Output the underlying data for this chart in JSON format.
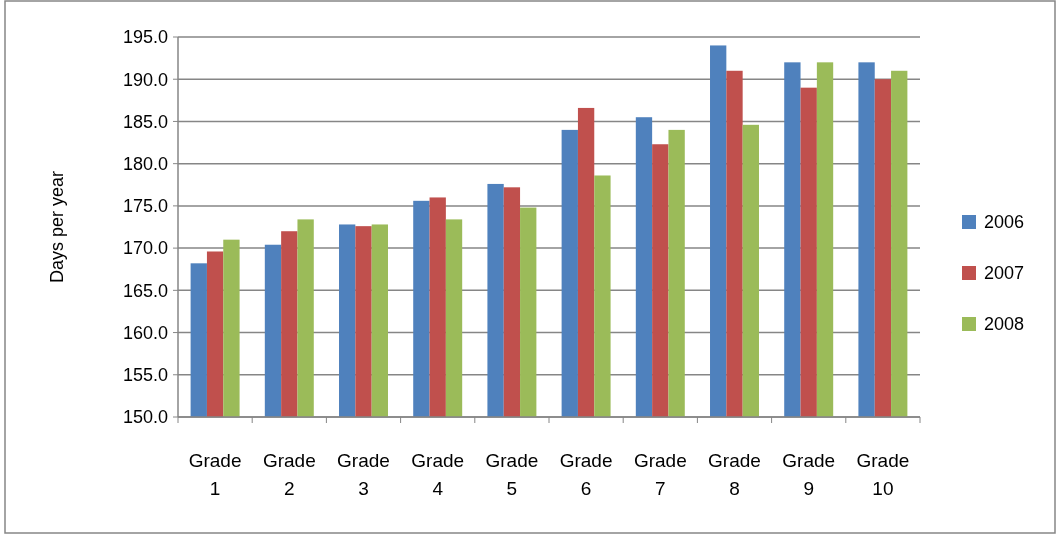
{
  "chart_data": {
    "type": "bar",
    "ylabel": "Days per year",
    "categories": [
      "Grade 1",
      "Grade 2",
      "Grade 3",
      "Grade 4",
      "Grade 5",
      "Grade 6",
      "Grade 7",
      "Grade 8",
      "Grade 9",
      "Grade 10"
    ],
    "series": [
      {
        "name": "2006",
        "color": "#4f81bd",
        "values": [
          168.2,
          170.4,
          172.8,
          175.6,
          177.6,
          184.0,
          185.5,
          194.0,
          192.0,
          192.0
        ]
      },
      {
        "name": "2007",
        "color": "#c0504d",
        "values": [
          169.6,
          172.0,
          172.6,
          176.0,
          177.2,
          186.6,
          182.3,
          191.0,
          189.0,
          190.0
        ]
      },
      {
        "name": "2008",
        "color": "#9bbb59",
        "values": [
          171.0,
          173.4,
          172.8,
          173.4,
          174.8,
          178.6,
          184.0,
          184.6,
          192.0,
          191.0
        ]
      }
    ],
    "ylim": [
      150,
      195
    ],
    "yticks": [
      {
        "value": 150,
        "label": "150.0"
      },
      {
        "value": 155,
        "label": "155.0"
      },
      {
        "value": 160,
        "label": "160.0"
      },
      {
        "value": 165,
        "label": "165.0"
      },
      {
        "value": 170,
        "label": "170.0"
      },
      {
        "value": 175,
        "label": "175.0"
      },
      {
        "value": 180,
        "label": "180.0"
      },
      {
        "value": 185,
        "label": "185.0"
      },
      {
        "value": 190,
        "label": "190.0"
      },
      {
        "value": 195,
        "label": "195.0"
      }
    ],
    "grid": "y",
    "legend": "right"
  }
}
